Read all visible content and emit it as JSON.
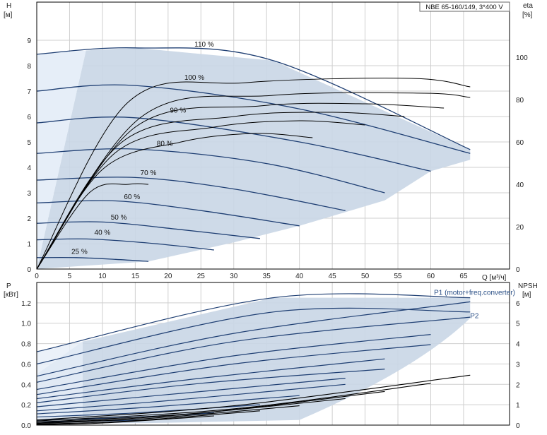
{
  "chart_data": {
    "type": "line",
    "title": "NBE 65-160/149, 3*400 V",
    "colors": {
      "speed_curve": "#1f3f73",
      "eta_curve": "#000000",
      "operating_area": "#c9d6e5",
      "operating_area_light": "#e6eef8",
      "grid": "#cfcfcf"
    },
    "top": {
      "ylabel_left": "H",
      "ylabel_left_unit": "[м]",
      "ylabel_right": "eta",
      "ylabel_right_unit": "[%]",
      "xlabel": "Q [м³/ч]",
      "xlim": [
        0,
        72
      ],
      "ylim": [
        0,
        10.5
      ],
      "eta_lim": [
        0,
        126
      ],
      "x_ticks": [
        0,
        5,
        10,
        15,
        20,
        25,
        30,
        35,
        40,
        45,
        50,
        55,
        60,
        65
      ],
      "y_ticks": [
        0,
        1,
        2,
        3,
        4,
        5,
        6,
        7,
        8,
        9
      ],
      "eta_ticks": [
        0,
        20,
        40,
        60,
        80,
        100
      ],
      "grid": true,
      "curves": [
        {
          "label": "110 %",
          "label_at": [
            25.5,
            8.75
          ],
          "points": [
            [
              0,
              8.45
            ],
            [
              15,
              8.7
            ],
            [
              36,
              8.2
            ],
            [
              66,
              4.7
            ]
          ]
        },
        {
          "label": "100 %",
          "label_at": [
            24,
            7.45
          ],
          "points": [
            [
              0,
              7.0
            ],
            [
              15,
              7.22
            ],
            [
              40,
              6.3
            ],
            [
              66,
              4.55
            ]
          ]
        },
        {
          "label": "90 %",
          "label_at": [
            21.5,
            6.15
          ],
          "points": [
            [
              0,
              5.75
            ],
            [
              15,
              5.95
            ],
            [
              40,
              5.0
            ],
            [
              60,
              3.85
            ]
          ]
        },
        {
          "label": "80 %",
          "label_at": [
            19.5,
            4.85
          ],
          "points": [
            [
              0,
              4.55
            ],
            [
              15,
              4.72
            ],
            [
              35,
              4.15
            ],
            [
              53,
              3.0
            ]
          ]
        },
        {
          "label": "70 %",
          "label_at": [
            17,
            3.7
          ],
          "points": [
            [
              0,
              3.5
            ],
            [
              15,
              3.6
            ],
            [
              30,
              3.15
            ],
            [
              47,
              2.3
            ]
          ]
        },
        {
          "label": "60 %",
          "label_at": [
            14.5,
            2.75
          ],
          "points": [
            [
              0,
              2.6
            ],
            [
              12,
              2.68
            ],
            [
              25,
              2.3
            ],
            [
              40,
              1.7
            ]
          ]
        },
        {
          "label": "50 %",
          "label_at": [
            12.5,
            1.95
          ],
          "points": [
            [
              0,
              1.8
            ],
            [
              10,
              1.85
            ],
            [
              22,
              1.55
            ],
            [
              34,
              1.2
            ]
          ]
        },
        {
          "label": "40 %",
          "label_at": [
            10,
            1.35
          ],
          "points": [
            [
              0,
              1.15
            ],
            [
              8,
              1.18
            ],
            [
              18,
              1.0
            ],
            [
              27,
              0.75
            ]
          ]
        },
        {
          "label": "25 %",
          "label_at": [
            6.5,
            0.6
          ],
          "points": [
            [
              0,
              0.45
            ],
            [
              6,
              0.45
            ],
            [
              12,
              0.38
            ],
            [
              17,
              0.3
            ]
          ]
        }
      ],
      "eta_curves": [
        [
          [
            0,
            0
          ],
          [
            14,
            79
          ],
          [
            32,
            88
          ],
          [
            57,
            90
          ],
          [
            66,
            86
          ]
        ],
        [
          [
            0,
            0
          ],
          [
            16,
            72
          ],
          [
            36,
            82
          ],
          [
            59,
            83
          ],
          [
            66,
            81
          ]
        ],
        [
          [
            0,
            0
          ],
          [
            15,
            67
          ],
          [
            34,
            77
          ],
          [
            50,
            78
          ],
          [
            62,
            76
          ]
        ],
        [
          [
            0,
            0
          ],
          [
            13,
            60
          ],
          [
            30,
            72
          ],
          [
            45,
            74
          ],
          [
            56,
            72
          ]
        ],
        [
          [
            0,
            0
          ],
          [
            12,
            55
          ],
          [
            27,
            67
          ],
          [
            40,
            70
          ],
          [
            50,
            68
          ]
        ],
        [
          [
            0,
            0
          ],
          [
            10,
            47
          ],
          [
            22,
            60
          ],
          [
            33,
            64
          ],
          [
            42,
            62
          ]
        ],
        [
          [
            0,
            0
          ],
          [
            8,
            36
          ],
          [
            14,
            40
          ],
          [
            17,
            40
          ]
        ]
      ]
    },
    "bottom": {
      "ylabel_left": "P",
      "ylabel_left_unit": "[кВт]",
      "ylabel_right": "NPSH",
      "ylabel_right_unit": "[м]",
      "xlim": [
        0,
        72
      ],
      "ylim": [
        0,
        1.4
      ],
      "npsh_lim": [
        0,
        7
      ],
      "y_ticks": [
        0,
        0.2,
        0.4,
        0.6,
        0.8,
        1.0,
        1.2
      ],
      "y_tick_labels": [
        "0.0",
        "0.2",
        "0.4",
        "0.6",
        "0.8",
        "1.0",
        "1.2"
      ],
      "npsh_ticks": [
        0,
        1,
        2,
        3,
        4,
        5,
        6
      ],
      "grid": true,
      "series_labels": [
        {
          "name": "P1 (motor+freq.converter)",
          "at": [
            60.5,
            1.28
          ]
        },
        {
          "name": "P2",
          "at": [
            66,
            1.05
          ]
        }
      ],
      "p_curves": [
        [
          [
            0,
            0.72
          ],
          [
            36,
            1.25
          ],
          [
            66,
            1.25
          ]
        ],
        [
          [
            0,
            0.6
          ],
          [
            36,
            1.11
          ],
          [
            66,
            1.11
          ]
        ],
        [
          [
            0,
            0.48
          ],
          [
            30,
            0.9
          ],
          [
            66,
            1.21
          ]
        ],
        [
          [
            0,
            0.42
          ],
          [
            30,
            0.82
          ],
          [
            66,
            1.06
          ]
        ],
        [
          [
            0,
            0.35
          ],
          [
            30,
            0.68
          ],
          [
            60,
            0.89
          ]
        ],
        [
          [
            0,
            0.3
          ],
          [
            30,
            0.6
          ],
          [
            60,
            0.79
          ]
        ],
        [
          [
            0,
            0.26
          ],
          [
            25,
            0.46
          ],
          [
            53,
            0.65
          ]
        ],
        [
          [
            0,
            0.22
          ],
          [
            25,
            0.41
          ],
          [
            53,
            0.55
          ]
        ],
        [
          [
            0,
            0.18
          ],
          [
            20,
            0.3
          ],
          [
            47,
            0.46
          ]
        ],
        [
          [
            0,
            0.14
          ],
          [
            20,
            0.24
          ],
          [
            47,
            0.4
          ]
        ],
        [
          [
            0,
            0.11
          ],
          [
            18,
            0.18
          ],
          [
            40,
            0.29
          ]
        ],
        [
          [
            0,
            0.08
          ],
          [
            15,
            0.12
          ],
          [
            34,
            0.2
          ]
        ],
        [
          [
            0,
            0.05
          ],
          [
            12,
            0.07
          ],
          [
            27,
            0.12
          ]
        ],
        [
          [
            0,
            0.03
          ],
          [
            8,
            0.04
          ],
          [
            17,
            0.05
          ]
        ]
      ],
      "npsh_curves": [
        [
          [
            0,
            0.25
          ],
          [
            30,
            0.95
          ],
          [
            66,
            2.45
          ]
        ],
        [
          [
            0,
            0.2
          ],
          [
            30,
            0.8
          ],
          [
            60,
            2.05
          ]
        ],
        [
          [
            0,
            0.15
          ],
          [
            25,
            0.6
          ],
          [
            53,
            1.65
          ]
        ],
        [
          [
            0,
            0.1
          ],
          [
            20,
            0.45
          ],
          [
            47,
            1.3
          ]
        ],
        [
          [
            0,
            0.08
          ],
          [
            18,
            0.35
          ],
          [
            40,
            0.95
          ]
        ],
        [
          [
            0,
            0.05
          ],
          [
            14,
            0.2
          ],
          [
            34,
            0.7
          ]
        ],
        [
          [
            0,
            0.03
          ],
          [
            10,
            0.1
          ],
          [
            27,
            0.45
          ]
        ]
      ]
    }
  }
}
